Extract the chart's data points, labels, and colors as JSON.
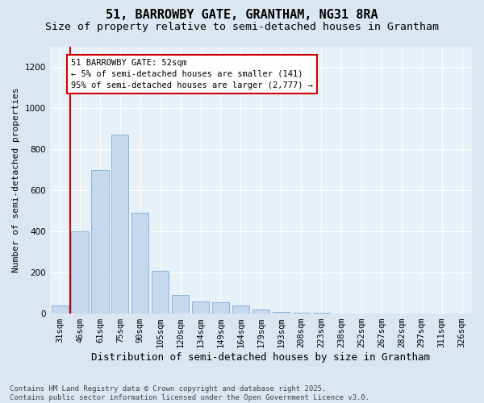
{
  "title1": "51, BARROWBY GATE, GRANTHAM, NG31 8RA",
  "title2": "Size of property relative to semi-detached houses in Grantham",
  "xlabel": "Distribution of semi-detached houses by size in Grantham",
  "ylabel": "Number of semi-detached properties",
  "categories": [
    "31sqm",
    "46sqm",
    "61sqm",
    "75sqm",
    "90sqm",
    "105sqm",
    "120sqm",
    "134sqm",
    "149sqm",
    "164sqm",
    "179sqm",
    "193sqm",
    "208sqm",
    "223sqm",
    "238sqm",
    "252sqm",
    "267sqm",
    "282sqm",
    "297sqm",
    "311sqm",
    "326sqm"
  ],
  "values": [
    40,
    400,
    700,
    870,
    490,
    210,
    90,
    60,
    55,
    40,
    20,
    8,
    5,
    3,
    2,
    1,
    1,
    1,
    0,
    0,
    2
  ],
  "bar_color": "#c5d8ee",
  "bar_edge_color": "#7aaed4",
  "vline_x": 0.5,
  "vline_color": "#cc0000",
  "annotation_text": "51 BARROWBY GATE: 52sqm\n← 5% of semi-detached houses are smaller (141)\n95% of semi-detached houses are larger (2,777) →",
  "ylim": [
    0,
    1300
  ],
  "yticks": [
    0,
    200,
    400,
    600,
    800,
    1000,
    1200
  ],
  "bg_color": "#dce6f0",
  "plot_bg_color": "#e8f0f8",
  "footnote": "Contains HM Land Registry data © Crown copyright and database right 2025.\nContains public sector information licensed under the Open Government Licence v3.0.",
  "title1_fontsize": 11,
  "title2_fontsize": 9.5,
  "xlabel_fontsize": 9,
  "ylabel_fontsize": 8,
  "tick_fontsize": 7.5,
  "footnote_fontsize": 6.5
}
